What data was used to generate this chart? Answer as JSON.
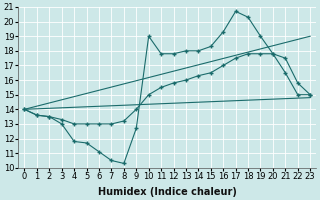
{
  "xlabel": "Humidex (Indice chaleur)",
  "ylabel": "",
  "xlim": [
    -0.5,
    23.5
  ],
  "ylim": [
    10,
    21
  ],
  "xticks": [
    0,
    1,
    2,
    3,
    4,
    5,
    6,
    7,
    8,
    9,
    10,
    11,
    12,
    13,
    14,
    15,
    16,
    17,
    18,
    19,
    20,
    21,
    22,
    23
  ],
  "yticks": [
    10,
    11,
    12,
    13,
    14,
    15,
    16,
    17,
    18,
    19,
    20,
    21
  ],
  "background_color": "#cde8e8",
  "grid_color": "#b0d8d8",
  "line_color": "#1a6b6b",
  "curve1_x": [
    0,
    1,
    2,
    3,
    4,
    5,
    6,
    7,
    8,
    9,
    10,
    11,
    12,
    13,
    14,
    15,
    16,
    17,
    18,
    19,
    20,
    21,
    22,
    23
  ],
  "curve1_y": [
    14.0,
    13.6,
    13.5,
    13.0,
    11.8,
    11.7,
    11.1,
    10.5,
    10.3,
    12.7,
    19.0,
    17.8,
    17.8,
    18.0,
    18.0,
    18.3,
    19.3,
    20.7,
    20.3,
    19.0,
    17.8,
    16.5,
    15.0,
    15.0
  ],
  "curve2_x": [
    0,
    1,
    2,
    3,
    4,
    5,
    6,
    7,
    8,
    9,
    10,
    11,
    12,
    13,
    14,
    15,
    16,
    17,
    18,
    19,
    20,
    21,
    22,
    23
  ],
  "curve2_y": [
    14.0,
    13.6,
    13.5,
    13.3,
    13.0,
    13.0,
    13.0,
    13.0,
    13.2,
    14.0,
    15.0,
    15.5,
    15.8,
    16.0,
    16.3,
    16.5,
    17.0,
    17.5,
    17.8,
    17.8,
    17.8,
    17.5,
    15.8,
    15.0
  ],
  "line1_x": [
    0,
    23
  ],
  "line1_y": [
    14.0,
    14.8
  ],
  "line2_x": [
    0,
    23
  ],
  "line2_y": [
    14.0,
    19.0
  ],
  "fontsize_label": 7,
  "fontsize_tick": 6.0
}
